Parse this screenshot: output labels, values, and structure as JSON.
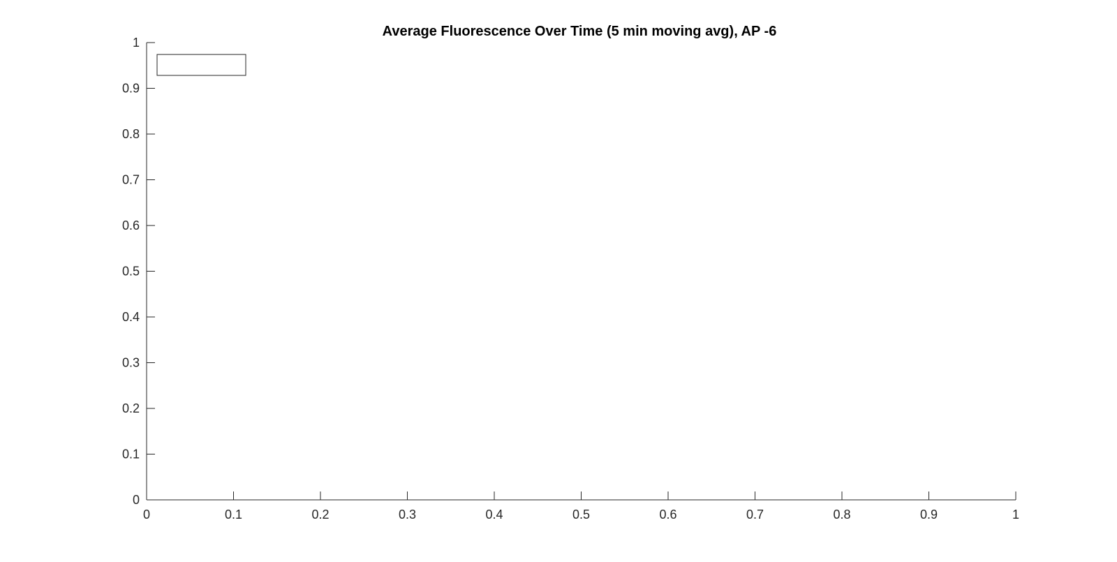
{
  "chart_data": {
    "type": "line",
    "title": "Average Fluorescence Over Time (5 min moving avg), AP -6",
    "xlabel": "",
    "ylabel": "",
    "xlim": [
      0,
      1
    ],
    "ylim": [
      0,
      1
    ],
    "x_ticks": [
      "0",
      "0.1",
      "0.2",
      "0.3",
      "0.4",
      "0.5",
      "0.6",
      "0.7",
      "0.8",
      "0.9",
      "1"
    ],
    "y_ticks": [
      "0",
      "0.1",
      "0.2",
      "0.3",
      "0.4",
      "0.5",
      "0.6",
      "0.7",
      "0.8",
      "0.9",
      "1"
    ],
    "series": [],
    "legend": {
      "placement": "top-left",
      "entries": []
    },
    "grid": false
  }
}
